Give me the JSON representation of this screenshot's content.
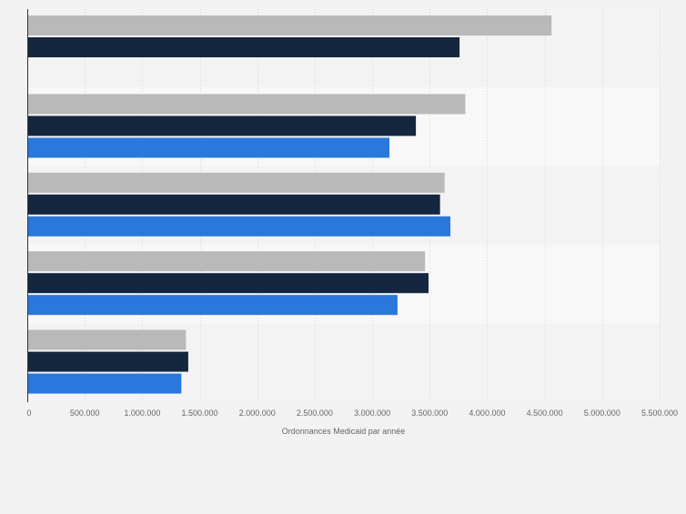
{
  "chart_data": {
    "type": "bar",
    "orientation": "horizontal",
    "xlabel": "Ordonnances Medicaid par année",
    "ylabel": "",
    "xlim": [
      0,
      5500000
    ],
    "x_ticks": [
      0,
      500000,
      1000000,
      1500000,
      2000000,
      2500000,
      3000000,
      3500000,
      4000000,
      4500000,
      5000000,
      5500000
    ],
    "x_tick_labels": [
      "0",
      "500.000",
      "1.000.000",
      "1.500.000",
      "2.000.000",
      "2.500.000",
      "3.000.000",
      "3.500.000",
      "4.000.000",
      "4.500.000",
      "5.000.000",
      "5.500.000"
    ],
    "grid": true,
    "legend": "none",
    "group_count": 5,
    "series": [
      {
        "color": "#b9b9b9",
        "values": [
          4560000,
          3810000,
          3630000,
          3460000,
          1380000
        ]
      },
      {
        "color": "#14273f",
        "values": [
          3760000,
          3380000,
          3590000,
          3490000,
          1400000
        ]
      },
      {
        "color": "#2a78dc",
        "values": [
          null,
          3150000,
          3680000,
          3220000,
          1340000
        ]
      }
    ]
  }
}
